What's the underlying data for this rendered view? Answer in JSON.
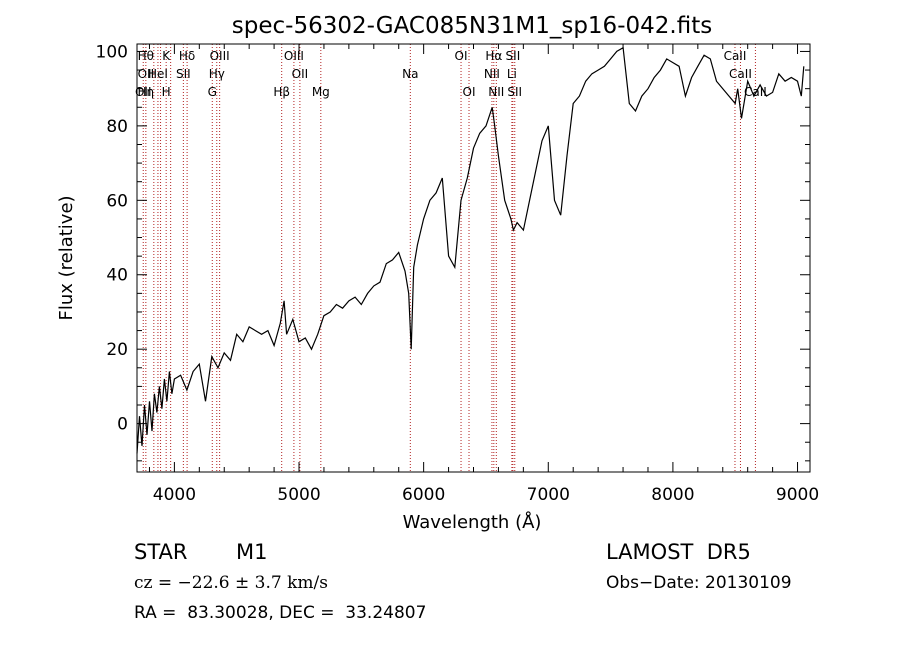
{
  "chart_data": {
    "type": "line",
    "title": "spec-56302-GAC085N31M1_sp16-042.fits",
    "xlabel": "Wavelength (Å)",
    "ylabel": "Flux (relative)",
    "xlim": [
      3700,
      9100
    ],
    "ylim": [
      -13,
      102
    ],
    "xticks": [
      4000,
      5000,
      6000,
      7000,
      8000,
      9000
    ],
    "yticks": [
      0,
      20,
      40,
      60,
      80,
      100
    ],
    "grid": false,
    "line_color": "#000000",
    "marker_color": "#b22222",
    "series": [
      {
        "x": [
          3700,
          3720,
          3740,
          3760,
          3780,
          3800,
          3820,
          3840,
          3860,
          3880,
          3900,
          3920,
          3940,
          3960,
          3980,
          4000,
          4050,
          4100,
          4150,
          4200,
          4250,
          4300,
          4350,
          4400,
          4450,
          4500,
          4550,
          4600,
          4650,
          4700,
          4750,
          4800,
          4850,
          4880,
          4900,
          4950,
          5000,
          5050,
          5100,
          5150,
          5200,
          5250,
          5300,
          5350,
          5400,
          5450,
          5500,
          5550,
          5600,
          5650,
          5700,
          5750,
          5800,
          5850,
          5880,
          5900,
          5920,
          5950,
          6000,
          6050,
          6100,
          6150,
          6200,
          6250,
          6300,
          6350,
          6400,
          6450,
          6500,
          6550,
          6570,
          6600,
          6650,
          6700,
          6720,
          6750,
          6800,
          6850,
          6900,
          6950,
          7000,
          7050,
          7100,
          7150,
          7200,
          7250,
          7300,
          7350,
          7400,
          7450,
          7500,
          7550,
          7600,
          7650,
          7700,
          7750,
          7800,
          7850,
          7900,
          7950,
          8000,
          8050,
          8100,
          8150,
          8200,
          8250,
          8300,
          8350,
          8400,
          8450,
          8500,
          8520,
          8550,
          8600,
          8650,
          8700,
          8750,
          8800,
          8850,
          8900,
          8950,
          9000,
          9030,
          9050
        ],
        "y": [
          -8,
          2,
          -6,
          5,
          -3,
          6,
          -2,
          8,
          3,
          10,
          4,
          12,
          6,
          14,
          8,
          12,
          13,
          9,
          14,
          16,
          6,
          18,
          15,
          19,
          17,
          24,
          22,
          26,
          25,
          24,
          25,
          21,
          27,
          33,
          24,
          28,
          22,
          23,
          20,
          24,
          29,
          30,
          32,
          31,
          33,
          34,
          32,
          35,
          37,
          38,
          43,
          44,
          46,
          41,
          35,
          20,
          42,
          48,
          55,
          60,
          62,
          66,
          45,
          42,
          60,
          66,
          74,
          78,
          80,
          85,
          80,
          72,
          60,
          55,
          52,
          54,
          52,
          60,
          68,
          76,
          80,
          60,
          56,
          72,
          86,
          88,
          92,
          94,
          95,
          96,
          98,
          100,
          101,
          86,
          84,
          88,
          90,
          93,
          95,
          98,
          97,
          96,
          88,
          93,
          96,
          99,
          98,
          92,
          90,
          88,
          86,
          90,
          82,
          92,
          88,
          91,
          88,
          89,
          94,
          92,
          93,
          92,
          88,
          96
        ]
      }
    ],
    "line_markers": [
      {
        "x": 3750,
        "labels": [
          "",
          "",
          "OII"
        ]
      },
      {
        "x": 3771,
        "labels": [
          "Hθ",
          "OII",
          "Hη"
        ]
      },
      {
        "x": 3835,
        "labels": [
          "",
          "",
          ""
        ]
      },
      {
        "x": 3868,
        "labels": [
          "",
          "HeI",
          ""
        ]
      },
      {
        "x": 3889,
        "labels": [
          "",
          "",
          ""
        ]
      },
      {
        "x": 3934,
        "labels": [
          "K",
          "",
          "H"
        ]
      },
      {
        "x": 3970,
        "labels": [
          "",
          "",
          ""
        ]
      },
      {
        "x": 4072,
        "labels": [
          "",
          "SII",
          ""
        ]
      },
      {
        "x": 4102,
        "labels": [
          "Hδ",
          "",
          ""
        ]
      },
      {
        "x": 4304,
        "labels": [
          "",
          "",
          "G"
        ]
      },
      {
        "x": 4340,
        "labels": [
          "",
          "Hγ",
          ""
        ]
      },
      {
        "x": 4363,
        "labels": [
          "OIII",
          "",
          ""
        ]
      },
      {
        "x": 4861,
        "labels": [
          "",
          "",
          "Hβ"
        ]
      },
      {
        "x": 4959,
        "labels": [
          "OIII",
          "",
          ""
        ]
      },
      {
        "x": 5007,
        "labels": [
          "",
          "OII",
          ""
        ]
      },
      {
        "x": 5175,
        "labels": [
          "",
          "",
          "Mg"
        ]
      },
      {
        "x": 5893,
        "labels": [
          "",
          "Na",
          ""
        ]
      },
      {
        "x": 6300,
        "labels": [
          "OI",
          "",
          ""
        ]
      },
      {
        "x": 6364,
        "labels": [
          "",
          "",
          "OI"
        ]
      },
      {
        "x": 6548,
        "labels": [
          "",
          "NII",
          ""
        ]
      },
      {
        "x": 6563,
        "labels": [
          "Hα",
          "",
          ""
        ]
      },
      {
        "x": 6583,
        "labels": [
          "",
          "",
          "NII"
        ]
      },
      {
        "x": 6708,
        "labels": [
          "",
          "Li",
          ""
        ]
      },
      {
        "x": 6716,
        "labels": [
          "SII",
          "",
          ""
        ]
      },
      {
        "x": 6731,
        "labels": [
          "",
          "",
          "SII"
        ]
      },
      {
        "x": 8498,
        "labels": [
          "CaII",
          "",
          ""
        ]
      },
      {
        "x": 8542,
        "labels": [
          "",
          "CaII",
          ""
        ]
      },
      {
        "x": 8662,
        "labels": [
          "",
          "",
          "CaII"
        ]
      }
    ]
  },
  "info": {
    "object_class": "STAR",
    "subclass": "M1",
    "cz": "cz = −22.6 ± 3.7 km/s",
    "coords": "RA =  83.30028, DEC =  33.24807",
    "survey": "LAMOST  DR5",
    "obs_date": "Obs−Date: 20130109"
  }
}
